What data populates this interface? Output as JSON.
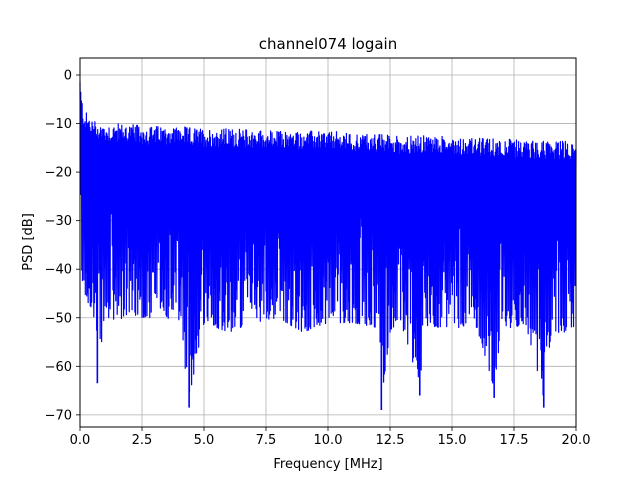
{
  "chart_data": {
    "type": "line",
    "title": "channel074 logain",
    "xlabel": "Frequency [MHz]",
    "ylabel": "PSD [dB]",
    "xlim": [
      0,
      20
    ],
    "ylim": [
      -72.5,
      3.5
    ],
    "x_ticks": [
      0,
      2.5,
      5,
      7.5,
      10,
      12.5,
      15,
      17.5,
      20
    ],
    "x_tick_labels": [
      "0.0",
      "2.5",
      "5.0",
      "7.5",
      "10.0",
      "12.5",
      "15.0",
      "17.5",
      "20.0"
    ],
    "y_ticks": [
      0,
      -10,
      -20,
      -30,
      -40,
      -50,
      -60,
      -70
    ],
    "y_tick_labels": [
      "0",
      "−10",
      "−20",
      "−30",
      "−40",
      "−50",
      "−60",
      "−70"
    ],
    "grid": true,
    "series": [
      {
        "color": "#0000ff",
        "x": [
          0.0,
          0.05,
          0.15,
          0.3,
          0.5,
          0.7,
          1.0,
          1.5,
          2.0,
          2.5,
          3.0,
          3.5,
          4.0,
          4.4,
          5.0,
          5.5,
          6.0,
          7.0,
          8.0,
          9.0,
          10.0,
          11.0,
          12.0,
          12.15,
          12.5,
          13.0,
          13.7,
          14.0,
          15.0,
          16.0,
          16.7,
          17.0,
          18.0,
          18.7,
          19.0,
          19.5,
          20.0
        ],
        "upper": [
          -4,
          -8,
          -11,
          -12,
          -13,
          -13.5,
          -14,
          -14,
          -14,
          -14.5,
          -14.5,
          -14.5,
          -14.5,
          -14.8,
          -15,
          -15,
          -15,
          -15.2,
          -15.5,
          -15.5,
          -15.5,
          -16,
          -16,
          -16.2,
          -16.2,
          -16.5,
          -16.5,
          -16.5,
          -16.5,
          -17,
          -17,
          -17,
          -17.5,
          -17.5,
          -17.5,
          -17.5,
          -18
        ],
        "lower": [
          -40,
          -44,
          -47,
          -49,
          -50,
          -63.5,
          -52,
          -53,
          -51,
          -52,
          -52,
          -52,
          -53,
          -68.5,
          -53,
          -54,
          -55,
          -53,
          -52,
          -55,
          -53,
          -53,
          -54,
          -69,
          -55,
          -54,
          -66,
          -54,
          -54,
          -54,
          -66.5,
          -54,
          -54,
          -68.5,
          -55,
          -55,
          -54
        ]
      }
    ]
  }
}
